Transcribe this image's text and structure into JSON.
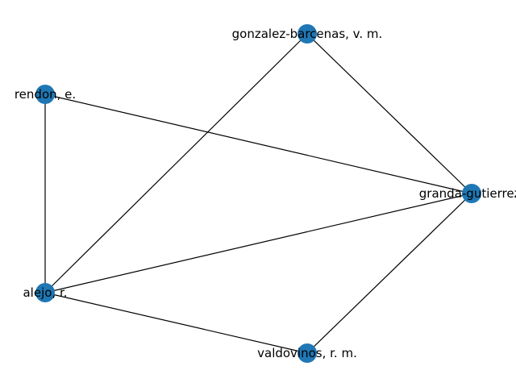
{
  "graph": {
    "type": "network",
    "node_color": "#1f77b4",
    "edge_color": "#000000",
    "nodes": [
      {
        "id": "gonzalez",
        "label": "gonzalez-barcenas, v. m."
      },
      {
        "id": "rendon",
        "label": "rendon, e."
      },
      {
        "id": "granda",
        "label": "granda-gutierrez,"
      },
      {
        "id": "alejo",
        "label": "alejo, r."
      },
      {
        "id": "valdovinos",
        "label": "valdovinos, r. m."
      }
    ],
    "edges": [
      {
        "source": "gonzalez",
        "target": "granda"
      },
      {
        "source": "gonzalez",
        "target": "alejo"
      },
      {
        "source": "rendon",
        "target": "granda"
      },
      {
        "source": "rendon",
        "target": "alejo"
      },
      {
        "source": "alejo",
        "target": "granda"
      },
      {
        "source": "alejo",
        "target": "valdovinos"
      },
      {
        "source": "valdovinos",
        "target": "granda"
      }
    ]
  }
}
